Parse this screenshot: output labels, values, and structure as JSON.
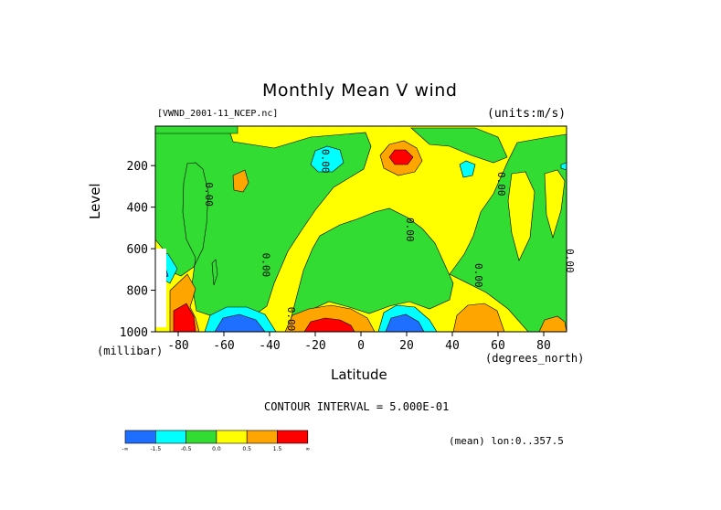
{
  "chart_data": {
    "type": "heatmap",
    "title": "Monthly Mean V wind",
    "dataset": "[VWND_2001-11_NCEP.nc]",
    "units": "(units:m/s)",
    "xlabel": "Latitude",
    "xunit": "(degrees_north)",
    "ylabel": "Level",
    "yunit": "(millibar)",
    "xlim": [
      -90,
      90
    ],
    "ylim": [
      1000,
      10
    ],
    "x_ticks": [
      -80,
      -60,
      -40,
      -20,
      0,
      20,
      40,
      60,
      80
    ],
    "y_ticks": [
      200,
      400,
      600,
      800,
      1000
    ],
    "contour_interval": "CONTOUR INTERVAL = 5.000E-01",
    "contour_labels": [
      {
        "text": "0.00",
        "lat": -68,
        "lev": 280
      },
      {
        "text": "0.00",
        "lat": -17,
        "lev": 120
      },
      {
        "text": "0.00",
        "lat": 20,
        "lev": 450
      },
      {
        "text": "0.00",
        "lat": -43,
        "lev": 620
      },
      {
        "text": "0.00",
        "lat": -32,
        "lev": 880
      },
      {
        "text": "0.00",
        "lat": 60,
        "lev": 230
      },
      {
        "text": "0.00",
        "lat": 50,
        "lev": 670
      },
      {
        "text": "0.00",
        "lat": 90,
        "lev": 600
      }
    ],
    "levels": [
      {
        "range": "< -1.5",
        "color": "#1e6eff"
      },
      {
        "range": "-1.5 to -0.5",
        "color": "#00ffff"
      },
      {
        "range": "-0.5 to 0.0",
        "color": "#32dc32"
      },
      {
        "range": "0.0 to 0.5",
        "color": "#ffff00"
      },
      {
        "range": "0.5 to 1.5",
        "color": "#ffa500"
      },
      {
        "range": "> 1.5",
        "color": "#ff0000"
      }
    ],
    "colorbar_ticks": [
      "-∞",
      "-1.5",
      "-0.5",
      "0.0",
      "0.5",
      "1.5",
      "∞"
    ],
    "mean_note": "(mean) lon:0..357.5"
  }
}
